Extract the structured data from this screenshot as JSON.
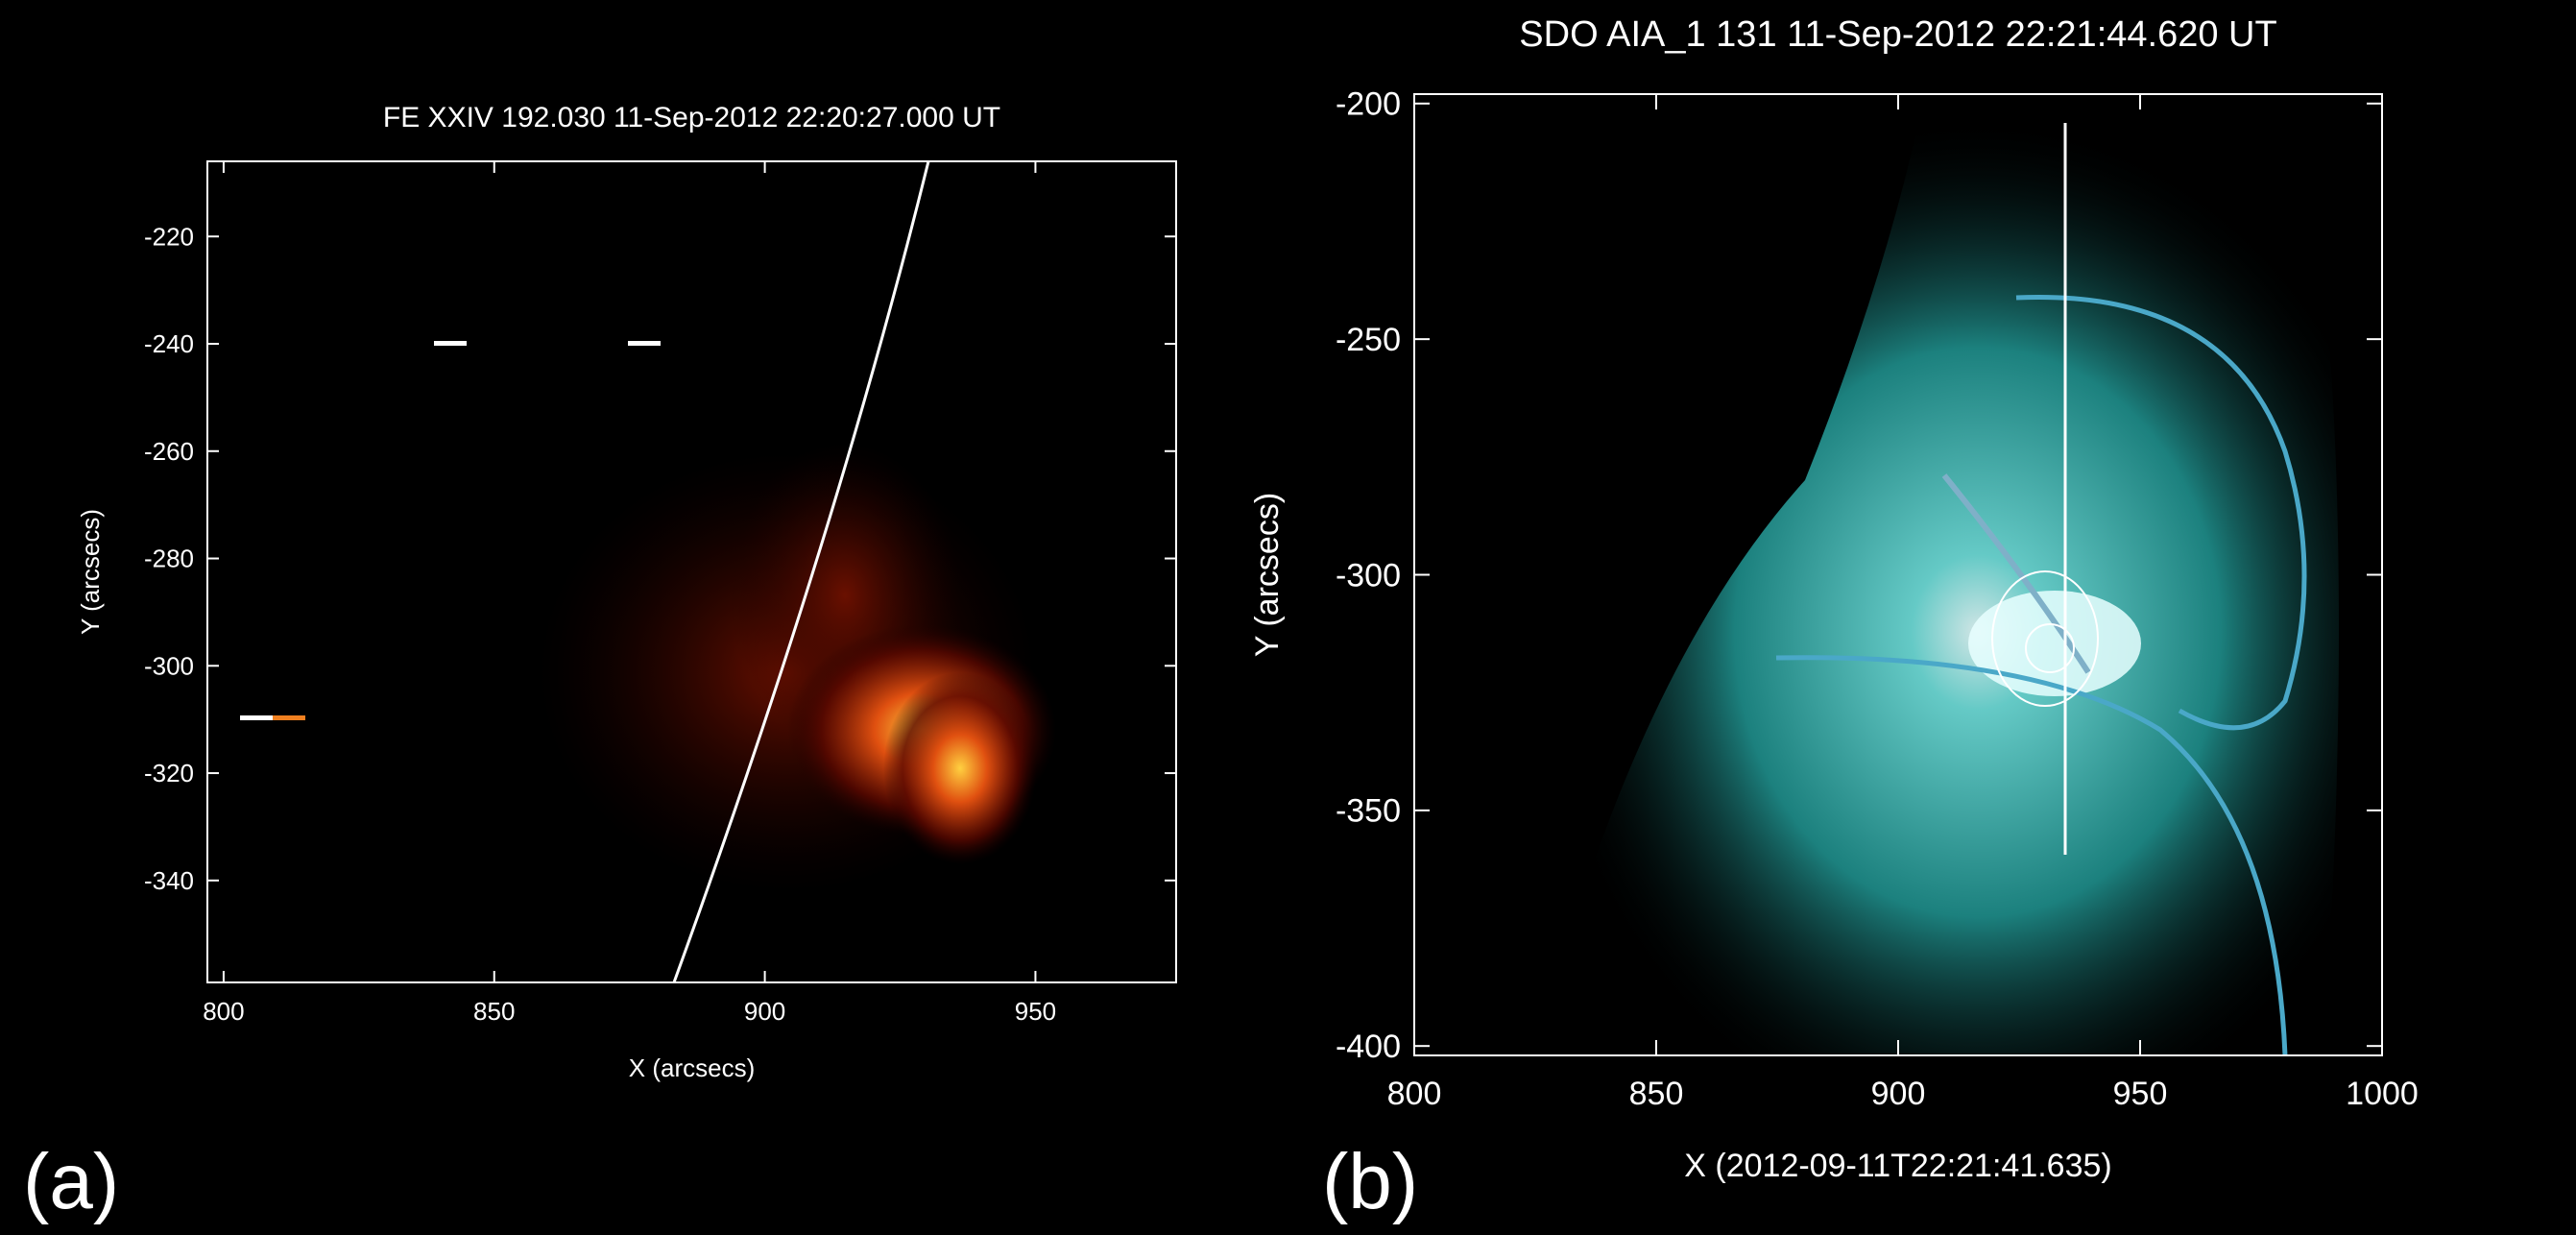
{
  "chart_data": [
    {
      "type": "image",
      "title": "FE XXIV 192.030 11-Sep-2012 22:20:27.000 UT",
      "xlabel": "X (arcsecs)",
      "ylabel": "Y (arcsecs)",
      "panel_label": "(a)",
      "xlim": [
        797,
        976
      ],
      "ylim": [
        -359,
        -206
      ],
      "xticks": [
        800,
        850,
        900,
        950
      ],
      "yticks": [
        -220,
        -240,
        -260,
        -280,
        -300,
        -320,
        -340
      ]
    },
    {
      "type": "image",
      "title": "SDO AIA_1 131 11-Sep-2012 22:21:44.620 UT",
      "xlabel": "X (2012-09-11T22:21:41.635)",
      "ylabel": "Y (arcsecs)",
      "panel_label": "(b)",
      "xlim": [
        800,
        1000
      ],
      "ylim": [
        -402,
        -198
      ],
      "xticks": [
        800,
        850,
        900,
        950,
        1000
      ],
      "yticks": [
        -200,
        -250,
        -300,
        -350,
        -400
      ]
    }
  ]
}
